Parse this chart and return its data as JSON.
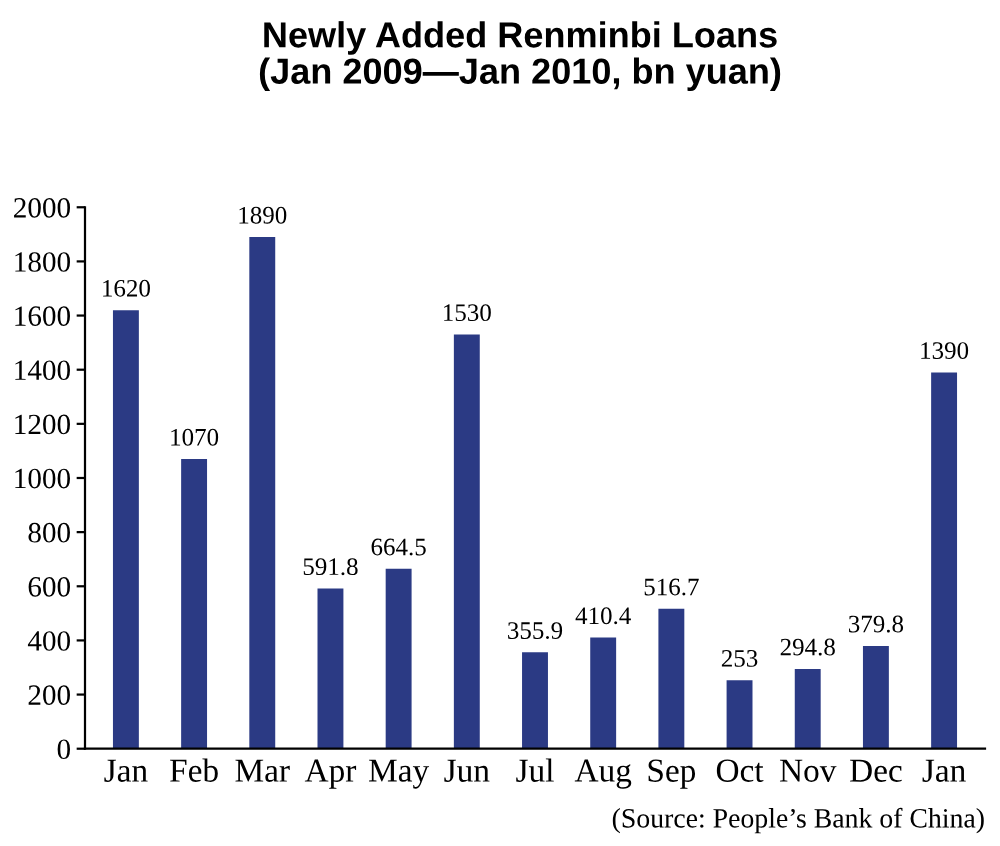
{
  "chart_data": {
    "type": "bar",
    "title": "Newly Added Renminbi Loans\n(Jan 2009—Jan 2010, bn yuan)",
    "categories": [
      "Jan",
      "Feb",
      "Mar",
      "Apr",
      "May",
      "Jun",
      "Jul",
      "Aug",
      "Sep",
      "Oct",
      "Nov",
      "Dec",
      "Jan"
    ],
    "values": [
      1620,
      1070,
      1890,
      591.8,
      664.5,
      1530,
      355.9,
      410.4,
      516.7,
      253,
      294.8,
      379.8,
      1390
    ],
    "color": "#2b3a84",
    "ylim": [
      0,
      2000
    ],
    "yticks": [
      0,
      200,
      400,
      600,
      800,
      1000,
      1200,
      1400,
      1600,
      1800,
      2000
    ],
    "data_labels": true,
    "grid": false,
    "legend": false,
    "annotations": [
      "(Source: People’s Bank of China)"
    ]
  }
}
